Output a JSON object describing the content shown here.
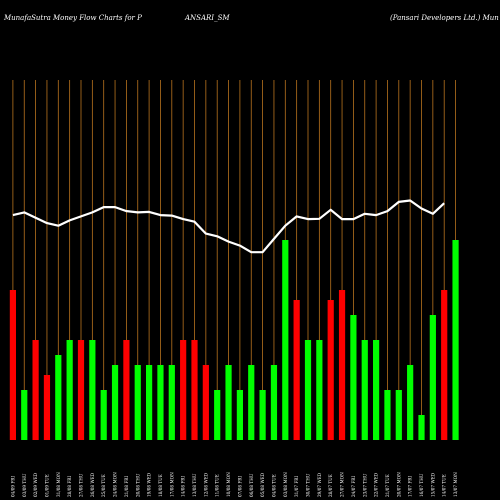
{
  "header": {
    "left": "MunafaSutra  Money Flow  Charts for P",
    "center": "ANSARI_SM",
    "right": "(Pansari   Developers Ltd.) Mun"
  },
  "colors": {
    "background": "#000000",
    "grid": "#b8731e",
    "up": "#00ff00",
    "down": "#ff0000",
    "line": "#ffffff"
  },
  "chart_data": {
    "type": "bar",
    "x_ticks": [
      "04/09 FRI",
      "03/09 THU",
      "02/09 WED",
      "01/09 TUE",
      "31/08 MON",
      "28/08 FRI",
      "27/08 THU",
      "26/08 WED",
      "25/08 TUE",
      "24/08 MON",
      "21/08 FRI",
      "20/08 THU",
      "19/08 WED",
      "18/08 TUE",
      "17/08 MON",
      "14/08 FRI",
      "13/08 THU",
      "12/08 WED",
      "11/08 TUE",
      "10/08 MON",
      "07/08 FRI",
      "06/08 THU",
      "05/08 WED",
      "04/08 TUE",
      "03/08 MON",
      "31/07 FRI",
      "30/07 THU",
      "29/07 WED",
      "28/07 TUE",
      "27/07 MON",
      "24/07 FRI",
      "23/07 THU",
      "22/07 WED",
      "21/07 TUE",
      "20/07 MON",
      "17/07 FRI",
      "16/07 THU",
      "15/07 WED",
      "14/07 TUE",
      "13/07 MON"
    ],
    "series": [
      {
        "values": [
          6,
          2,
          4,
          2.6,
          3.4,
          4,
          4,
          4,
          2,
          3,
          4,
          3,
          3,
          3,
          3,
          4,
          4,
          3,
          2,
          3,
          2,
          3,
          2,
          3,
          8,
          5.6,
          4,
          4,
          5.6,
          6,
          5,
          4,
          4,
          2,
          2,
          3,
          1,
          5,
          6,
          8
        ],
        "colors": [
          "down",
          "up",
          "down",
          "down",
          "up",
          "up",
          "down",
          "up",
          "up",
          "up",
          "down",
          "up",
          "up",
          "up",
          "up",
          "down",
          "down",
          "down",
          "up",
          "up",
          "up",
          "up",
          "up",
          "up",
          "up",
          "down",
          "up",
          "up",
          "down",
          "down",
          "up",
          "up",
          "up",
          "up",
          "up",
          "up",
          "up",
          "up",
          "down",
          "up"
        ]
      },
      {
        "values": [
          6.6,
          6.7,
          6.5,
          6.3,
          6.2,
          6.4,
          6.55,
          6.7,
          6.9,
          6.9,
          6.75,
          6.7,
          6.72,
          6.6,
          6.58,
          6.45,
          6.35,
          5.9,
          5.8,
          5.6,
          5.45,
          5.2,
          5.2,
          5.7,
          6.2,
          6.55,
          6.45,
          6.46,
          6.8,
          6.45,
          6.45,
          6.65,
          6.6,
          6.75,
          7.1,
          7.15,
          6.85,
          6.65,
          7.05,
          null
        ]
      }
    ]
  }
}
